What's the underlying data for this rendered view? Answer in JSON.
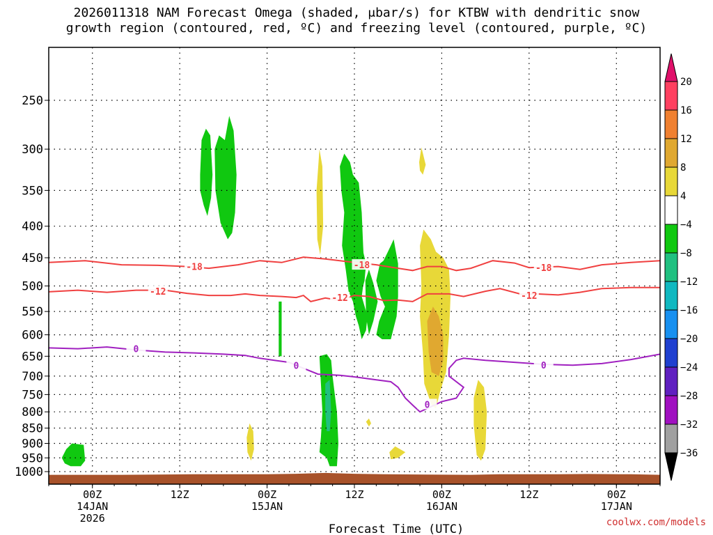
{
  "title_line1": "2026011318 NAM Forecast Omega (shaded, μbar/s) for KTBW with dendritic snow",
  "title_line2": "growth region (contoured, red, ºC) and freezing level (contoured, purple, ºC)",
  "credit": "coolwx.com/models",
  "chart_data": {
    "type": "time-height cross section",
    "title": "2026011318 NAM Forecast Omega (shaded, μbar/s) for KTBW with dendritic snow growth region (contoured, red, ºC) and freezing level (contoured, purple, ºC)",
    "xlabel": "Forecast Time (UTC)",
    "ylabel": "",
    "y_scale": "log-pressure (mb)",
    "y_ticks": [
      250,
      300,
      350,
      400,
      450,
      500,
      550,
      600,
      650,
      700,
      750,
      800,
      850,
      900,
      950,
      1000
    ],
    "x_ticks": [
      {
        "hour": 6,
        "line1": "00Z",
        "line2": "14JAN",
        "line3": "2026"
      },
      {
        "hour": 18,
        "line1": "12Z",
        "line2": "",
        "line3": ""
      },
      {
        "hour": 30,
        "line1": "00Z",
        "line2": "15JAN",
        "line3": ""
      },
      {
        "hour": 42,
        "line1": "12Z",
        "line2": "",
        "line3": ""
      },
      {
        "hour": 54,
        "line1": "00Z",
        "line2": "16JAN",
        "line3": ""
      },
      {
        "hour": 66,
        "line1": "12Z",
        "line2": "",
        "line3": ""
      },
      {
        "hour": 78,
        "line1": "00Z",
        "line2": "17JAN",
        "line3": ""
      }
    ],
    "xlim_hours": [
      0,
      84
    ],
    "colorbar": {
      "levels": [
        "20",
        "16",
        "12",
        "8",
        "4",
        "−4",
        "−8",
        "−12",
        "−16",
        "−20",
        "−24",
        "−28",
        "−32",
        "−36"
      ],
      "colors": [
        "#ff4060",
        "#f08030",
        "#e0a830",
        "#e8d838",
        "#ffffff",
        "#10c810",
        "#20c080",
        "#10b8c0",
        "#1890f0",
        "#2040d0",
        "#6020c0",
        "#a010c0",
        "#a0a0a0"
      ],
      "top_arrow": "#e0106a",
      "bottom_arrow": "#000000"
    },
    "contours": [
      {
        "name": "-18",
        "color": "#f04040",
        "points": [
          [
            0,
            458
          ],
          [
            5,
            455
          ],
          [
            10,
            462
          ],
          [
            15,
            463
          ],
          [
            19,
            465
          ],
          [
            22,
            468
          ],
          [
            26,
            462
          ],
          [
            29,
            455
          ],
          [
            32,
            458
          ],
          [
            35,
            449
          ],
          [
            38,
            452
          ],
          [
            42,
            458
          ],
          [
            45,
            462
          ],
          [
            48,
            468
          ],
          [
            50,
            472
          ],
          [
            52,
            465
          ],
          [
            54,
            465
          ],
          [
            56,
            472
          ],
          [
            58,
            468
          ],
          [
            61,
            455
          ],
          [
            64,
            459
          ],
          [
            66,
            467
          ],
          [
            70,
            465
          ],
          [
            73,
            470
          ],
          [
            76,
            462
          ],
          [
            80,
            458
          ],
          [
            84,
            455
          ]
        ],
        "labels": [
          [
            20,
            465
          ],
          [
            43,
            462
          ],
          [
            68,
            467
          ]
        ]
      },
      {
        "name": "-12",
        "color": "#f04040",
        "points": [
          [
            0,
            511
          ],
          [
            4,
            508
          ],
          [
            8,
            512
          ],
          [
            12,
            508
          ],
          [
            16,
            508
          ],
          [
            19,
            514
          ],
          [
            22,
            518
          ],
          [
            25,
            518
          ],
          [
            27,
            515
          ],
          [
            29,
            518
          ],
          [
            32,
            520
          ],
          [
            34,
            522
          ],
          [
            35,
            518
          ],
          [
            36,
            530
          ],
          [
            38,
            523
          ],
          [
            40,
            528
          ],
          [
            42,
            518
          ],
          [
            44,
            520
          ],
          [
            46,
            528
          ],
          [
            48,
            527
          ],
          [
            50,
            530
          ],
          [
            52,
            515
          ],
          [
            55,
            515
          ],
          [
            57,
            520
          ],
          [
            60,
            510
          ],
          [
            62,
            505
          ],
          [
            65,
            516
          ],
          [
            67,
            515
          ],
          [
            70,
            517
          ],
          [
            73,
            512
          ],
          [
            76,
            505
          ],
          [
            80,
            503
          ],
          [
            84,
            503
          ]
        ],
        "labels": [
          [
            15,
            510
          ],
          [
            40,
            522
          ],
          [
            66,
            518
          ]
        ]
      },
      {
        "name": "0",
        "color": "#a020c0",
        "points": [
          [
            0,
            630
          ],
          [
            4,
            632
          ],
          [
            8,
            628
          ],
          [
            12,
            635
          ],
          [
            16,
            640
          ],
          [
            20,
            642
          ],
          [
            24,
            645
          ],
          [
            27,
            648
          ],
          [
            29,
            655
          ],
          [
            31,
            660
          ],
          [
            33,
            665
          ],
          [
            35,
            680
          ],
          [
            37,
            695
          ],
          [
            40,
            698
          ],
          [
            42,
            702
          ],
          [
            45,
            710
          ],
          [
            47,
            715
          ],
          [
            48,
            730
          ],
          [
            49,
            760
          ],
          [
            50,
            780
          ],
          [
            51,
            800
          ],
          [
            52,
            790
          ],
          [
            53,
            780
          ],
          [
            54,
            770
          ],
          [
            55,
            765
          ],
          [
            56,
            760
          ],
          [
            57,
            730
          ],
          [
            55,
            700
          ],
          [
            55,
            680
          ],
          [
            56,
            660
          ],
          [
            57,
            655
          ],
          [
            60,
            660
          ],
          [
            64,
            665
          ],
          [
            68,
            670
          ],
          [
            72,
            672
          ],
          [
            76,
            668
          ],
          [
            80,
            658
          ],
          [
            84,
            645
          ]
        ],
        "labels": [
          [
            12,
            632
          ],
          [
            34,
            673
          ],
          [
            52,
            778
          ],
          [
            68,
            672
          ]
        ]
      }
    ],
    "omega_regions": [
      {
        "value": "-4 to -8",
        "color": "#10c810",
        "area": "21-23h, 280-370mb"
      },
      {
        "value": "-4 to -8",
        "color": "#10c810",
        "area": "23-26h, 265-420mb"
      },
      {
        "value": "-4 to -8",
        "color": "#10c810",
        "area": "40-44h, 310-500mb and 480-610mb"
      },
      {
        "value": "-4 to -8",
        "color": "#10c810",
        "area": "46-48h, 430-610mb"
      },
      {
        "value": "-4 to -8",
        "color": "#10c810",
        "area": "37-39h, 650-970mb"
      },
      {
        "value": "-8 to -12",
        "color": "#20c080",
        "area": "38h, 700-850mb"
      },
      {
        "value": "-4 to -8",
        "color": "#10c810",
        "area": "2-5h, 900-970mb"
      },
      {
        "value": "4 to 8",
        "color": "#e8d838",
        "area": "37h, 295-445mb"
      },
      {
        "value": "4 to 8",
        "color": "#e8d838",
        "area": "51-55h, 410-790mb"
      },
      {
        "value": "8 to 12",
        "color": "#e0a830",
        "area": "52-54h, 560-700mb"
      },
      {
        "value": "4 to 8",
        "color": "#e8d838",
        "area": "58-60h, 710-960mb"
      },
      {
        "value": "4 to 8",
        "color": "#e8d838",
        "area": "27-28h, 840-960mb"
      },
      {
        "value": "4 to 8",
        "color": "#e8d838",
        "area": "47-49h, 920-950mb"
      },
      {
        "value": "4 to 8",
        "color": "#e8d838",
        "area": "51h, 300-330mb"
      }
    ],
    "ground": {
      "color": "#a8522a",
      "pressure_mb": 1010
    }
  }
}
